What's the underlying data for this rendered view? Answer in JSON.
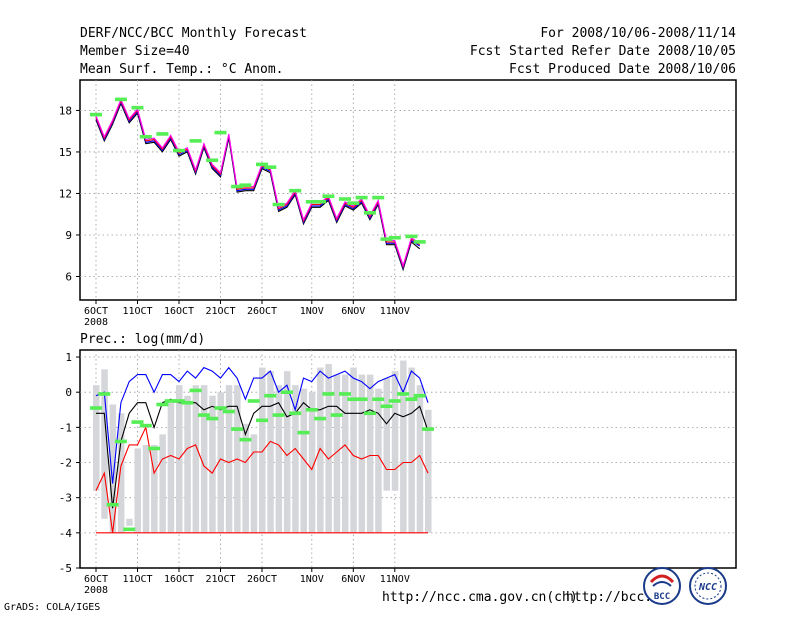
{
  "header": {
    "title": "DERF/NCC/BCC Monthly Forecast",
    "member_size": "Member Size=40",
    "variable": "Mean Surf. Temp.: °C Anom.",
    "period": "For 2008/10/06-2008/11/14",
    "refer_date": "Fcst Started Refer Date 2008/10/05",
    "produced_date": "Fcst Produced Date 2008/10/06"
  },
  "footer": {
    "grads": "GrADS: COLA/IGES",
    "url1": "http://ncc.cma.gov.cn(ch)",
    "url2": "http://bcc.c",
    "logo_bcc_text": "BCC",
    "logo_ncc_text": "NCC"
  },
  "chart_data": [
    {
      "type": "line",
      "name": "temperature",
      "title": "Mean Surf. Temp.: °C Anom.",
      "x_tick_labels": [
        "6OCT",
        "11OCT",
        "16OCT",
        "21OCT",
        "26OCT",
        "1NOV",
        "6NOV",
        "11NOV"
      ],
      "x_tick_days": [
        0,
        5,
        10,
        15,
        20,
        26,
        31,
        36
      ],
      "x_sublabel": "2008",
      "yticks": [
        6,
        9,
        12,
        15,
        18
      ],
      "ylim": [
        4.3,
        20.2
      ],
      "grid": true,
      "series": [
        {
          "name": "member-min",
          "color": "#000000",
          "values": [
            17.3,
            15.8,
            17.0,
            18.5,
            17.1,
            17.8,
            15.6,
            15.7,
            15.0,
            15.9,
            14.7,
            15.0,
            13.4,
            15.3,
            13.8,
            13.2,
            16.0,
            12.1,
            12.2,
            12.2,
            13.8,
            13.5,
            10.7,
            11.0,
            11.9,
            9.8,
            11.0,
            11.0,
            11.5,
            9.9,
            11.1,
            10.8,
            11.3,
            10.1,
            11.2,
            8.3,
            8.3,
            6.5,
            8.5,
            8.0
          ]
        },
        {
          "name": "member-low",
          "color": "#0000ff",
          "values": [
            17.4,
            15.9,
            17.1,
            18.6,
            17.2,
            17.9,
            15.7,
            15.8,
            15.1,
            16.0,
            14.8,
            15.1,
            13.5,
            15.4,
            13.9,
            13.3,
            16.1,
            12.2,
            12.3,
            12.3,
            13.9,
            13.6,
            10.8,
            11.1,
            12.0,
            9.9,
            11.1,
            11.1,
            11.6,
            10.0,
            11.2,
            10.9,
            11.4,
            10.2,
            11.3,
            8.4,
            8.4,
            6.6,
            8.6,
            8.2
          ]
        },
        {
          "name": "ensemble-mean",
          "color": "#ff0000",
          "values": [
            17.5,
            16.0,
            17.2,
            18.7,
            17.3,
            18.0,
            15.8,
            15.9,
            15.2,
            16.1,
            14.9,
            15.2,
            13.6,
            15.5,
            14.0,
            13.4,
            16.2,
            12.3,
            12.4,
            12.4,
            14.0,
            13.7,
            10.9,
            11.2,
            12.1,
            10.0,
            11.2,
            11.2,
            11.7,
            10.1,
            11.3,
            11.0,
            11.5,
            10.3,
            11.4,
            8.5,
            8.5,
            6.7,
            8.7,
            8.3
          ]
        },
        {
          "name": "member-high",
          "color": "#ff00ff",
          "values": [
            17.6,
            16.1,
            17.3,
            18.8,
            17.4,
            18.1,
            15.9,
            16.0,
            15.3,
            16.2,
            15.0,
            15.3,
            13.7,
            15.6,
            14.1,
            13.5,
            16.3,
            12.4,
            12.5,
            12.5,
            14.1,
            13.8,
            11.0,
            11.3,
            12.2,
            10.1,
            11.3,
            11.3,
            11.8,
            10.2,
            11.4,
            11.1,
            11.6,
            10.4,
            11.5,
            8.6,
            8.6,
            6.8,
            8.8,
            8.4
          ]
        }
      ],
      "markers": {
        "name": "control",
        "color": "#55ee55",
        "values": [
          17.7,
          null,
          null,
          18.8,
          null,
          18.2,
          16.1,
          null,
          16.3,
          null,
          15.1,
          null,
          15.8,
          null,
          14.4,
          16.4,
          null,
          12.5,
          12.6,
          null,
          14.1,
          13.9,
          11.2,
          null,
          12.2,
          null,
          11.4,
          11.4,
          11.8,
          null,
          11.6,
          11.3,
          11.7,
          10.6,
          11.7,
          8.7,
          8.8,
          null,
          8.9,
          8.5
        ]
      }
    },
    {
      "type": "bar",
      "name": "precipitation",
      "title": "Prec.: log(mm/d)",
      "x_tick_labels": [
        "6OCT",
        "11OCT",
        "16OCT",
        "21OCT",
        "26OCT",
        "1NOV",
        "6NOV",
        "11NOV"
      ],
      "x_tick_days": [
        0,
        5,
        10,
        15,
        20,
        26,
        31,
        36
      ],
      "x_sublabel": "2008",
      "yticks": [
        -5,
        -4,
        -3,
        -2,
        -1,
        0,
        1
      ],
      "ylim": [
        -5,
        1.2
      ],
      "baseline": -4,
      "grid": true,
      "bars": {
        "name": "member-range-bars",
        "color": "#d4d6da",
        "top": [
          0.2,
          0.65,
          -0.35,
          -0.6,
          -3.6,
          -1.6,
          -1.5,
          -1.5,
          -1.2,
          -0.3,
          0.2,
          -0.1,
          0.2,
          0.2,
          -0.1,
          0.0,
          0.2,
          0.2,
          -0.9,
          -1.2,
          0.7,
          0.6,
          0.2,
          0.6,
          0.2,
          0.1,
          0.0,
          0.7,
          0.8,
          0.5,
          0.5,
          0.7,
          0.5,
          0.5,
          0.1,
          0.4,
          0.6,
          0.9,
          0.7,
          0.2,
          -0.5
        ],
        "bottom": [
          -2.8,
          -3.6,
          -4.0,
          -4.0,
          -3.8,
          -4.0,
          -4.0,
          -4.0,
          -4.0,
          -4.0,
          -4.0,
          -4.0,
          -4.0,
          -4.0,
          -4.0,
          -4.0,
          -4.0,
          -4.0,
          -4.0,
          -4.0,
          -4.0,
          -4.0,
          -4.0,
          -4.0,
          -4.0,
          -4.0,
          -4.0,
          -4.0,
          -4.0,
          -4.0,
          -4.0,
          -4.0,
          -4.0,
          -4.0,
          -4.0,
          -2.8,
          -2.8,
          -4.0,
          -4.0,
          -4.0,
          -4.0
        ]
      },
      "series": [
        {
          "name": "upper-percentile",
          "color": "#0000ff",
          "values": [
            -0.1,
            0.0,
            -2.6,
            -0.3,
            0.3,
            0.5,
            0.5,
            0.0,
            0.5,
            0.5,
            0.3,
            0.6,
            0.4,
            0.7,
            0.6,
            0.4,
            0.7,
            0.4,
            -0.2,
            0.4,
            0.4,
            0.6,
            0.0,
            0.2,
            -0.5,
            0.4,
            0.3,
            0.6,
            0.4,
            0.5,
            0.6,
            0.4,
            0.3,
            0.1,
            0.3,
            0.4,
            0.5,
            0.0,
            0.6,
            0.4,
            -0.3
          ]
        },
        {
          "name": "ensemble-mean",
          "color": "#000000",
          "values": [
            -0.6,
            -0.6,
            -3.3,
            -1.4,
            -0.6,
            -0.3,
            -0.3,
            -1.0,
            -0.3,
            -0.2,
            -0.3,
            -0.3,
            -0.3,
            -0.5,
            -0.4,
            -0.5,
            -0.4,
            -0.4,
            -1.2,
            -0.6,
            -0.4,
            -0.4,
            -0.3,
            -0.7,
            -0.6,
            -0.3,
            -0.5,
            -0.5,
            -0.4,
            -0.4,
            -0.6,
            -0.6,
            -0.6,
            -0.5,
            -0.6,
            -0.9,
            -0.6,
            -0.7,
            -0.6,
            -0.4,
            -1.1
          ]
        },
        {
          "name": "lower-percentile",
          "color": "#ff0000",
          "values": [
            -2.8,
            -2.3,
            -4.0,
            -2.1,
            -1.5,
            -1.5,
            -1.0,
            -2.3,
            -1.9,
            -1.8,
            -1.9,
            -1.6,
            -1.5,
            -2.1,
            -2.3,
            -1.9,
            -2.0,
            -1.9,
            -2.0,
            -1.7,
            -1.7,
            -1.4,
            -1.5,
            -1.8,
            -1.6,
            -1.9,
            -2.2,
            -1.6,
            -1.9,
            -1.7,
            -1.5,
            -1.8,
            -1.9,
            -1.8,
            -1.8,
            -2.2,
            -2.2,
            -2.0,
            -2.0,
            -1.8,
            -2.3
          ]
        },
        {
          "name": "floor",
          "color": "#ff0000",
          "values": [
            -4.0,
            -4.0,
            -4.0,
            -4.0,
            -4.0,
            -4.0,
            -4.0,
            -4.0,
            -4.0,
            -4.0,
            -4.0,
            -4.0,
            -4.0,
            -4.0,
            -4.0,
            -4.0,
            -4.0,
            -4.0,
            -4.0,
            -4.0,
            -4.0,
            -4.0,
            -4.0,
            -4.0,
            -4.0,
            -4.0,
            -4.0,
            -4.0,
            -4.0,
            -4.0,
            -4.0,
            -4.0,
            -4.0,
            -4.0,
            -4.0,
            -4.0,
            -4.0,
            -4.0,
            -4.0,
            -4.0,
            -4.0
          ]
        }
      ],
      "markers": {
        "name": "control",
        "color": "#55ee55",
        "values": [
          -0.45,
          -0.05,
          -3.2,
          -1.4,
          -3.9,
          -0.85,
          -0.95,
          -1.6,
          -0.35,
          -0.25,
          -0.25,
          -0.3,
          0.05,
          -0.65,
          -0.75,
          -0.45,
          -0.55,
          -1.05,
          -1.35,
          -0.25,
          -0.8,
          -0.1,
          -0.65,
          0.0,
          -0.6,
          -1.15,
          -0.5,
          -0.75,
          -0.05,
          -0.65,
          -0.05,
          -0.2,
          -0.2,
          -0.6,
          -0.2,
          -0.4,
          -0.25,
          -0.05,
          -0.2,
          -0.1,
          -1.05
        ]
      }
    }
  ]
}
